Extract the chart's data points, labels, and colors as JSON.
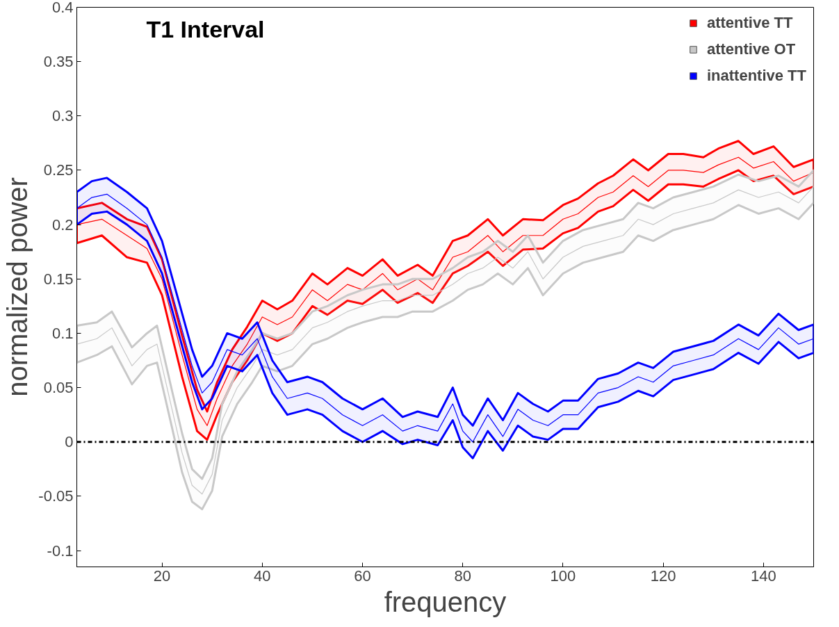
{
  "chart_data": {
    "type": "line",
    "title": "T1 Interval",
    "xlabel": "frequency",
    "ylabel": "normalized power",
    "xlim": [
      3,
      150
    ],
    "ylim": [
      -0.115,
      0.4
    ],
    "xticks": [
      20,
      40,
      60,
      80,
      100,
      120,
      140
    ],
    "yticks": [
      {
        "value": -0.1,
        "label": "-0.1"
      },
      {
        "value": -0.05,
        "label": "-0.05"
      },
      0,
      {
        "value": 0.05,
        "label": "0.05"
      },
      {
        "value": 0.1,
        "label": "0.1"
      },
      {
        "value": 0.15,
        "label": "0.15"
      },
      {
        "value": 0.2,
        "label": "0.2"
      },
      {
        "value": 0.25,
        "label": "0.25"
      },
      {
        "value": 0.3,
        "label": "0.3"
      },
      {
        "value": 0.35,
        "label": "0.35"
      },
      {
        "value": 0.4,
        "label": "0.4"
      }
    ],
    "grid": false,
    "legend": "top right",
    "ref_lines": [
      {
        "axis": "y",
        "value": 0,
        "color": "#000000",
        "line_style": "dashdot"
      }
    ],
    "series": [
      {
        "name": "attentive TT",
        "color": "#ff0000",
        "x": [
          3,
          8,
          13,
          17,
          20,
          24,
          27,
          29,
          31,
          34,
          37,
          40,
          43,
          46,
          50,
          53,
          57,
          60,
          64,
          67,
          71,
          74,
          78,
          81,
          85,
          88,
          92,
          96,
          100,
          103,
          107,
          110,
          114,
          117,
          121,
          124,
          128,
          131,
          135,
          138,
          142,
          146,
          150
        ],
        "values": [
          0.2,
          0.205,
          0.19,
          0.178,
          0.15,
          0.08,
          0.03,
          0.015,
          0.04,
          0.07,
          0.09,
          0.115,
          0.108,
          0.115,
          0.14,
          0.13,
          0.145,
          0.14,
          0.155,
          0.14,
          0.15,
          0.14,
          0.17,
          0.175,
          0.19,
          0.175,
          0.19,
          0.19,
          0.205,
          0.21,
          0.225,
          0.23,
          0.245,
          0.235,
          0.25,
          0.25,
          0.248,
          0.255,
          0.262,
          0.252,
          0.258,
          0.24,
          0.248
        ],
        "lower": [
          0.183,
          0.19,
          0.17,
          0.165,
          0.135,
          0.06,
          0.01,
          0.002,
          0.025,
          0.055,
          0.075,
          0.1,
          0.093,
          0.1,
          0.125,
          0.117,
          0.13,
          0.127,
          0.14,
          0.128,
          0.137,
          0.128,
          0.155,
          0.162,
          0.175,
          0.162,
          0.177,
          0.178,
          0.192,
          0.197,
          0.212,
          0.217,
          0.232,
          0.222,
          0.237,
          0.237,
          0.235,
          0.242,
          0.25,
          0.24,
          0.245,
          0.228,
          0.235
        ],
        "upper": [
          0.215,
          0.22,
          0.205,
          0.198,
          0.168,
          0.098,
          0.048,
          0.028,
          0.055,
          0.085,
          0.106,
          0.13,
          0.122,
          0.13,
          0.155,
          0.145,
          0.16,
          0.153,
          0.168,
          0.153,
          0.163,
          0.153,
          0.185,
          0.19,
          0.205,
          0.19,
          0.205,
          0.204,
          0.218,
          0.224,
          0.238,
          0.245,
          0.26,
          0.25,
          0.265,
          0.265,
          0.262,
          0.27,
          0.277,
          0.265,
          0.272,
          0.253,
          0.26
        ]
      },
      {
        "name": "attentive OT",
        "color": "#c8c8c8",
        "x": [
          3,
          7,
          10,
          14,
          17,
          19,
          22,
          24,
          26,
          28,
          30,
          32,
          35,
          38,
          40,
          43,
          46,
          50,
          53,
          57,
          60,
          64,
          67,
          70,
          74,
          78,
          81,
          84,
          87,
          90,
          93,
          96,
          100,
          104,
          108,
          112,
          115,
          118,
          122,
          126,
          130,
          135,
          139,
          143,
          147,
          150
        ],
        "values": [
          0.09,
          0.095,
          0.105,
          0.07,
          0.085,
          0.09,
          0.03,
          -0.01,
          -0.04,
          -0.048,
          -0.03,
          0.02,
          0.05,
          0.07,
          0.085,
          0.08,
          0.085,
          0.105,
          0.11,
          0.12,
          0.125,
          0.13,
          0.13,
          0.135,
          0.135,
          0.145,
          0.155,
          0.16,
          0.17,
          0.16,
          0.175,
          0.15,
          0.17,
          0.18,
          0.185,
          0.19,
          0.205,
          0.2,
          0.21,
          0.215,
          0.22,
          0.232,
          0.225,
          0.23,
          0.22,
          0.235
        ],
        "lower": [
          0.073,
          0.08,
          0.088,
          0.053,
          0.07,
          0.073,
          0.013,
          -0.028,
          -0.055,
          -0.062,
          -0.045,
          0.005,
          0.035,
          0.055,
          0.07,
          0.065,
          0.07,
          0.09,
          0.095,
          0.105,
          0.11,
          0.115,
          0.115,
          0.12,
          0.12,
          0.13,
          0.14,
          0.145,
          0.155,
          0.145,
          0.16,
          0.135,
          0.155,
          0.165,
          0.17,
          0.175,
          0.19,
          0.185,
          0.195,
          0.2,
          0.205,
          0.218,
          0.21,
          0.215,
          0.205,
          0.22
        ],
        "upper": [
          0.107,
          0.11,
          0.12,
          0.087,
          0.1,
          0.107,
          0.047,
          0.008,
          -0.025,
          -0.034,
          -0.015,
          0.035,
          0.065,
          0.085,
          0.1,
          0.095,
          0.1,
          0.12,
          0.125,
          0.135,
          0.14,
          0.145,
          0.145,
          0.15,
          0.15,
          0.16,
          0.17,
          0.175,
          0.185,
          0.175,
          0.19,
          0.165,
          0.185,
          0.195,
          0.2,
          0.205,
          0.22,
          0.215,
          0.225,
          0.23,
          0.235,
          0.246,
          0.24,
          0.245,
          0.235,
          0.25
        ]
      },
      {
        "name": "inattentive TT",
        "color": "#0000ff",
        "x": [
          3,
          6,
          9,
          13,
          17,
          20,
          23,
          26,
          28,
          30,
          33,
          36,
          39,
          42,
          45,
          49,
          52,
          56,
          60,
          64,
          68,
          71,
          75,
          78,
          80,
          82,
          85,
          88,
          91,
          94,
          97,
          100,
          103,
          107,
          111,
          115,
          118,
          122,
          126,
          130,
          135,
          139,
          143,
          147,
          150
        ],
        "values": [
          0.215,
          0.225,
          0.228,
          0.215,
          0.2,
          0.17,
          0.12,
          0.07,
          0.045,
          0.055,
          0.085,
          0.08,
          0.095,
          0.06,
          0.04,
          0.045,
          0.04,
          0.025,
          0.015,
          0.025,
          0.01,
          0.015,
          0.01,
          0.035,
          0.01,
          0.0,
          0.025,
          0.005,
          0.03,
          0.02,
          0.015,
          0.025,
          0.025,
          0.045,
          0.05,
          0.06,
          0.055,
          0.07,
          0.075,
          0.08,
          0.095,
          0.085,
          0.105,
          0.09,
          0.095
        ],
        "lower": [
          0.2,
          0.21,
          0.212,
          0.2,
          0.185,
          0.155,
          0.105,
          0.055,
          0.03,
          0.04,
          0.07,
          0.065,
          0.08,
          0.045,
          0.025,
          0.03,
          0.025,
          0.01,
          0.0,
          0.01,
          -0.002,
          0.002,
          -0.003,
          0.02,
          -0.005,
          -0.015,
          0.01,
          -0.008,
          0.015,
          0.005,
          0.002,
          0.012,
          0.012,
          0.032,
          0.037,
          0.047,
          0.042,
          0.057,
          0.062,
          0.067,
          0.082,
          0.072,
          0.092,
          0.077,
          0.082
        ],
        "upper": [
          0.23,
          0.24,
          0.243,
          0.23,
          0.215,
          0.185,
          0.135,
          0.085,
          0.06,
          0.07,
          0.1,
          0.095,
          0.11,
          0.075,
          0.055,
          0.06,
          0.055,
          0.04,
          0.03,
          0.04,
          0.023,
          0.028,
          0.023,
          0.05,
          0.025,
          0.015,
          0.04,
          0.02,
          0.045,
          0.035,
          0.028,
          0.038,
          0.038,
          0.058,
          0.063,
          0.073,
          0.068,
          0.083,
          0.088,
          0.093,
          0.108,
          0.098,
          0.118,
          0.103,
          0.108
        ]
      }
    ]
  }
}
